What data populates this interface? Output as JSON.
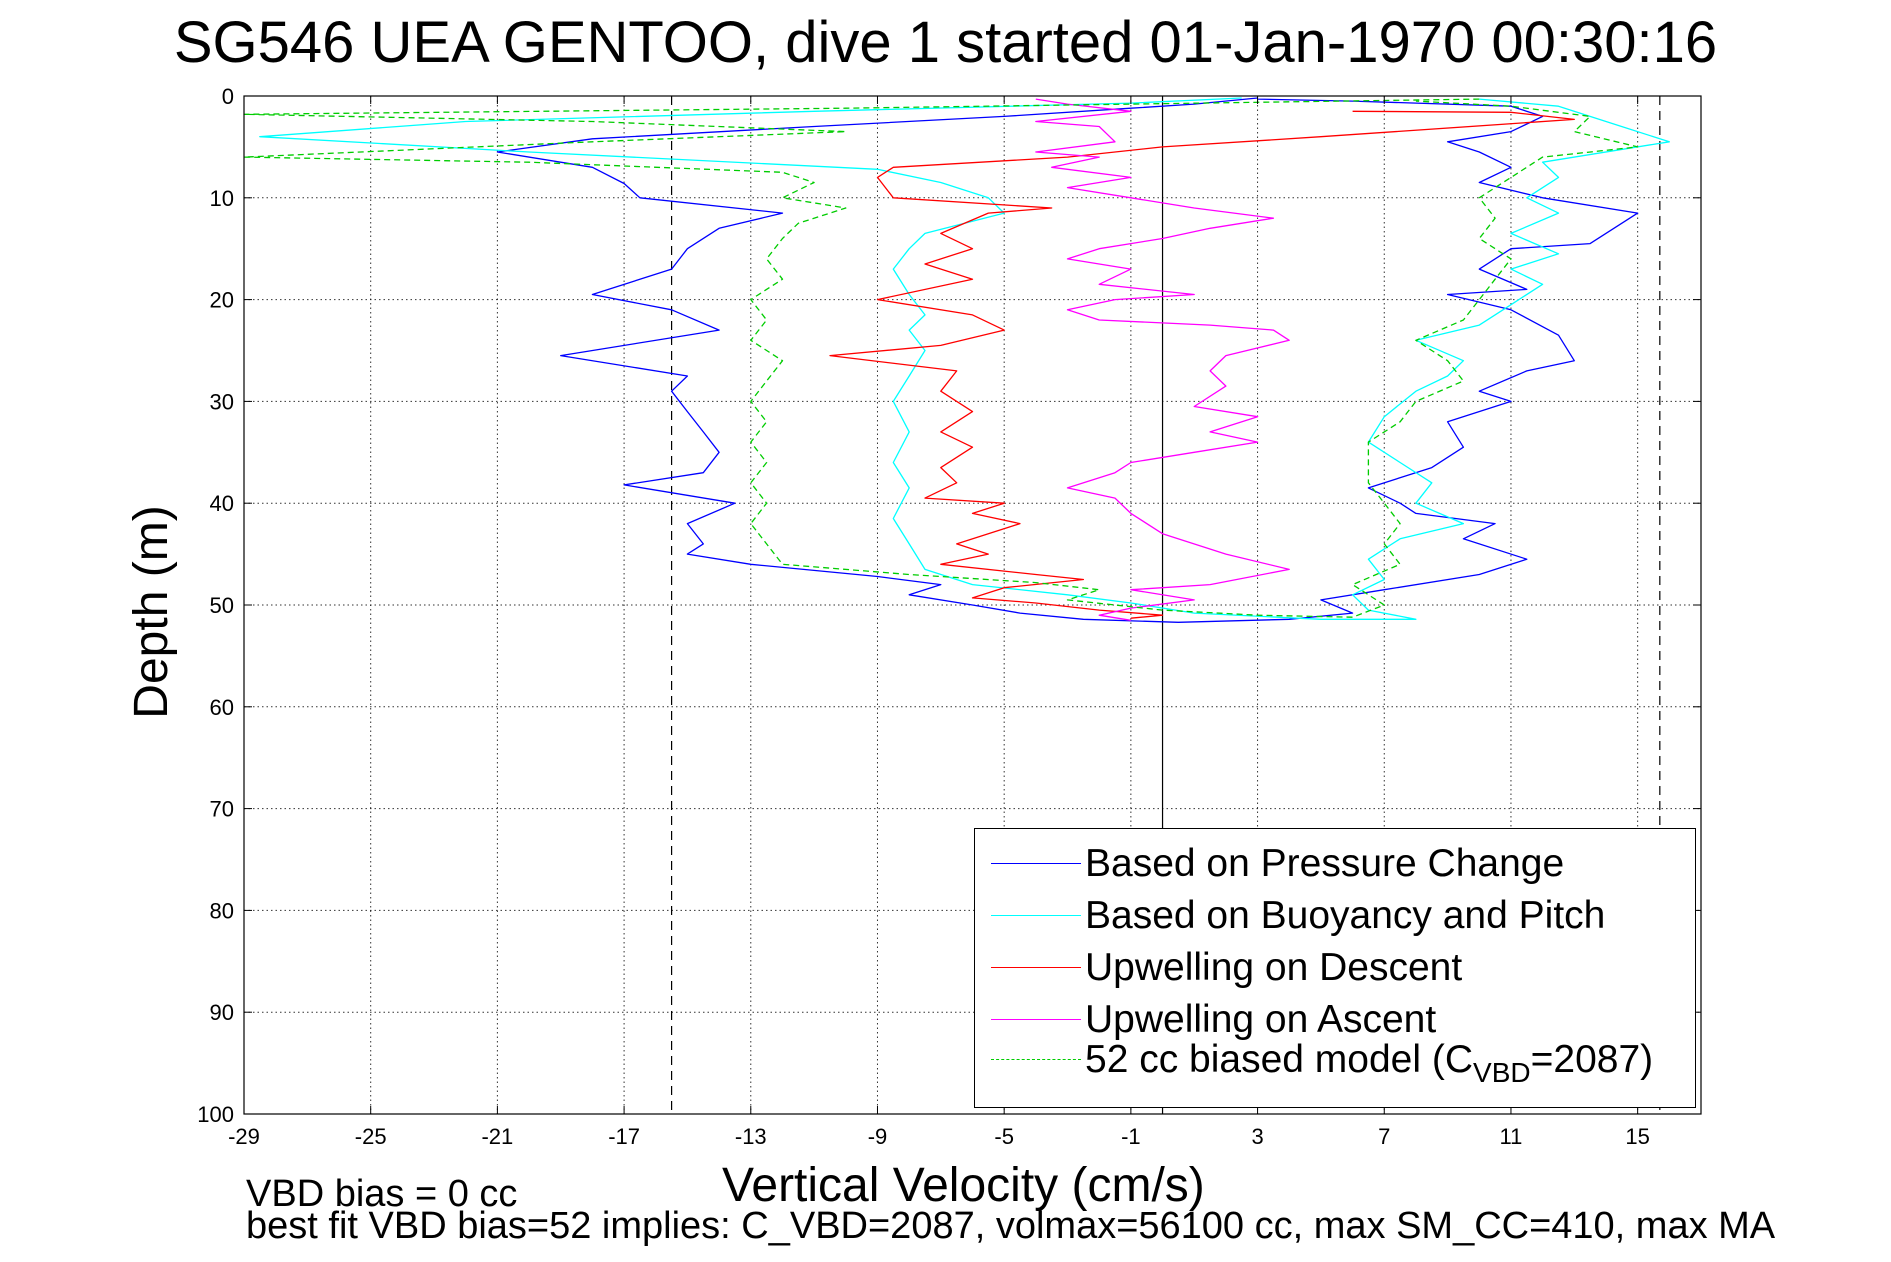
{
  "chart_data": {
    "type": "line",
    "title": "SG546 UEA GENTOO, dive 1 started 01-Jan-1970 00:30:16",
    "xlabel": "Vertical Velocity (cm/s)",
    "ylabel": "Depth (m)",
    "xlim": [
      -29,
      17
    ],
    "ylim": [
      0,
      100
    ],
    "y_reversed": true,
    "x_ticks": [
      "-29",
      "-25",
      "-21",
      "-17",
      "-13",
      "-9",
      "-5",
      "-1",
      "3",
      "7",
      "11",
      "15"
    ],
    "x_tick_values": [
      -29,
      -25,
      -21,
      -17,
      -13,
      -9,
      -5,
      -1,
      3,
      7,
      11,
      15
    ],
    "y_ticks": [
      "0",
      "10",
      "20",
      "30",
      "40",
      "50",
      "60",
      "70",
      "80",
      "90",
      "100"
    ],
    "y_tick_values": [
      0,
      10,
      20,
      30,
      40,
      50,
      60,
      70,
      80,
      90,
      100
    ],
    "grid": true,
    "legend_position": "bottom-right",
    "reference_lines": [
      {
        "x": 0.0,
        "style": "solid",
        "color": "#000000"
      },
      {
        "x": -15.5,
        "style": "dashed",
        "color": "#000000"
      },
      {
        "x": 15.7,
        "style": "dashed",
        "color": "#000000"
      }
    ],
    "series": [
      {
        "name": "Based on Pressure Change",
        "color": "#0000ff",
        "style": "solid",
        "points": [
          [
            3.0,
            0.2
          ],
          [
            1.0,
            0.8
          ],
          [
            -1.0,
            1.2
          ],
          [
            -5.0,
            2.0
          ],
          [
            -11.0,
            3.0
          ],
          [
            -18.0,
            4.2
          ],
          [
            -21.0,
            5.5
          ],
          [
            -18.0,
            7.0
          ],
          [
            -17.0,
            8.6
          ],
          [
            -16.5,
            10.0
          ],
          [
            -12.0,
            11.5
          ],
          [
            -14.0,
            13.0
          ],
          [
            -15.0,
            15.0
          ],
          [
            -15.5,
            17.0
          ],
          [
            -18.0,
            19.5
          ],
          [
            -15.5,
            21.0
          ],
          [
            -14.0,
            23.0
          ],
          [
            -19.0,
            25.5
          ],
          [
            -15.0,
            27.5
          ],
          [
            -15.5,
            29.0
          ],
          [
            -15.0,
            31.0
          ],
          [
            -14.5,
            33.0
          ],
          [
            -14.0,
            35.0
          ],
          [
            -14.5,
            37.0
          ],
          [
            -17.0,
            38.2
          ],
          [
            -13.5,
            40.0
          ],
          [
            -15.0,
            42.0
          ],
          [
            -14.5,
            44.0
          ],
          [
            -15.0,
            45.0
          ],
          [
            -13.0,
            46.0
          ],
          [
            -9.0,
            47.2
          ],
          [
            -7.0,
            48.0
          ],
          [
            -8.0,
            49.0
          ],
          [
            -6.0,
            50.0
          ],
          [
            -4.5,
            50.8
          ],
          [
            -2.5,
            51.4
          ],
          [
            0.5,
            51.7
          ],
          [
            4.0,
            51.4
          ],
          [
            6.0,
            50.8
          ],
          [
            5.0,
            49.5
          ],
          [
            7.0,
            48.5
          ],
          [
            10.0,
            47.0
          ],
          [
            11.5,
            45.5
          ],
          [
            9.5,
            43.5
          ],
          [
            10.5,
            42.0
          ],
          [
            8.0,
            41.0
          ],
          [
            7.5,
            40.0
          ],
          [
            6.5,
            38.5
          ],
          [
            8.5,
            36.5
          ],
          [
            9.5,
            34.5
          ],
          [
            9.0,
            32.0
          ],
          [
            11.0,
            30.0
          ],
          [
            10.0,
            29.0
          ],
          [
            11.5,
            27.0
          ],
          [
            13.0,
            26.0
          ],
          [
            12.5,
            23.5
          ],
          [
            11.0,
            21.0
          ],
          [
            9.0,
            19.5
          ],
          [
            11.5,
            19.0
          ],
          [
            10.0,
            17.0
          ],
          [
            11.0,
            15.0
          ],
          [
            13.5,
            14.5
          ],
          [
            15.0,
            11.5
          ],
          [
            12.0,
            10.0
          ],
          [
            10.0,
            8.5
          ],
          [
            11.0,
            7.0
          ],
          [
            10.0,
            5.5
          ],
          [
            9.0,
            4.5
          ],
          [
            11.0,
            3.5
          ],
          [
            12.0,
            2.0
          ],
          [
            11.0,
            1.0
          ],
          [
            6.0,
            0.5
          ],
          [
            3.0,
            0.3
          ]
        ]
      },
      {
        "name": "Based on Buoyancy and Pitch",
        "color": "#00ffff",
        "style": "solid",
        "points": [
          [
            2.5,
            0.2
          ],
          [
            -1.0,
            0.7
          ],
          [
            -11.0,
            1.5
          ],
          [
            -22.0,
            2.5
          ],
          [
            -28.5,
            4.0
          ],
          [
            -20.0,
            5.5
          ],
          [
            -9.0,
            7.2
          ],
          [
            -7.0,
            8.5
          ],
          [
            -5.5,
            10.0
          ],
          [
            -5.0,
            11.5
          ],
          [
            -7.5,
            13.5
          ],
          [
            -8.0,
            15.0
          ],
          [
            -8.5,
            17.0
          ],
          [
            -8.0,
            19.5
          ],
          [
            -7.5,
            21.5
          ],
          [
            -8.0,
            23.0
          ],
          [
            -7.5,
            25.0
          ],
          [
            -8.0,
            27.5
          ],
          [
            -8.5,
            30.0
          ],
          [
            -8.0,
            33.0
          ],
          [
            -8.5,
            36.0
          ],
          [
            -8.0,
            38.5
          ],
          [
            -8.5,
            41.5
          ],
          [
            -8.0,
            44.0
          ],
          [
            -7.5,
            46.5
          ],
          [
            -6.0,
            48.0
          ],
          [
            -3.0,
            49.0
          ],
          [
            -1.0,
            49.8
          ],
          [
            1.0,
            50.8
          ],
          [
            5.0,
            51.4
          ],
          [
            8.0,
            51.4
          ],
          [
            6.5,
            50.5
          ],
          [
            6.0,
            49.0
          ],
          [
            7.0,
            47.5
          ],
          [
            6.5,
            45.5
          ],
          [
            7.5,
            43.5
          ],
          [
            9.5,
            42.0
          ],
          [
            8.0,
            40.0
          ],
          [
            8.5,
            38.0
          ],
          [
            7.5,
            36.0
          ],
          [
            6.5,
            34.0
          ],
          [
            7.0,
            31.5
          ],
          [
            8.0,
            29.0
          ],
          [
            9.0,
            27.5
          ],
          [
            9.5,
            26.0
          ],
          [
            8.0,
            24.0
          ],
          [
            10.0,
            22.5
          ],
          [
            11.0,
            20.5
          ],
          [
            12.0,
            18.5
          ],
          [
            11.0,
            17.0
          ],
          [
            12.5,
            15.5
          ],
          [
            11.0,
            13.5
          ],
          [
            12.5,
            11.5
          ],
          [
            11.5,
            10.0
          ],
          [
            12.5,
            8.0
          ],
          [
            12.0,
            6.5
          ],
          [
            16.0,
            4.5
          ],
          [
            14.0,
            2.5
          ],
          [
            12.5,
            1.0
          ],
          [
            10.0,
            0.3
          ]
        ]
      },
      {
        "name": "Upwelling on Descent",
        "color": "#ff0000",
        "style": "solid",
        "points": [
          [
            6.0,
            1.5
          ],
          [
            11.0,
            1.6
          ],
          [
            13.0,
            2.3
          ],
          [
            5.0,
            4.0
          ],
          [
            0.0,
            5.0
          ],
          [
            -3.0,
            6.0
          ],
          [
            -8.5,
            7.0
          ],
          [
            -9.0,
            8.0
          ],
          [
            -8.5,
            10.0
          ],
          [
            -3.5,
            11.0
          ],
          [
            -5.5,
            11.5
          ],
          [
            -7.0,
            13.5
          ],
          [
            -6.0,
            15.0
          ],
          [
            -7.5,
            16.5
          ],
          [
            -6.0,
            18.0
          ],
          [
            -9.0,
            20.0
          ],
          [
            -6.0,
            21.5
          ],
          [
            -5.0,
            23.0
          ],
          [
            -7.0,
            24.5
          ],
          [
            -10.5,
            25.5
          ],
          [
            -6.5,
            27.0
          ],
          [
            -7.0,
            29.0
          ],
          [
            -6.0,
            31.0
          ],
          [
            -7.0,
            33.0
          ],
          [
            -6.0,
            34.5
          ],
          [
            -7.0,
            36.5
          ],
          [
            -6.5,
            38.0
          ],
          [
            -7.5,
            39.5
          ],
          [
            -5.0,
            40.0
          ],
          [
            -6.0,
            41.0
          ],
          [
            -4.5,
            42.0
          ],
          [
            -6.5,
            44.0
          ],
          [
            -5.5,
            45.0
          ],
          [
            -7.0,
            46.0
          ],
          [
            -4.0,
            47.0
          ],
          [
            -2.5,
            47.5
          ],
          [
            -5.0,
            48.3
          ],
          [
            -6.0,
            49.3
          ],
          [
            -4.0,
            49.8
          ],
          [
            -2.0,
            50.5
          ],
          [
            0.0,
            51.0
          ],
          [
            -1.0,
            51.3
          ]
        ]
      },
      {
        "name": "Upwelling on Ascent",
        "color": "#ff00ff",
        "style": "solid",
        "points": [
          [
            -1.0,
            51.5
          ],
          [
            -2.0,
            51.0
          ],
          [
            -1.0,
            50.3
          ],
          [
            1.0,
            49.5
          ],
          [
            -1.0,
            48.5
          ],
          [
            1.5,
            48.0
          ],
          [
            4.0,
            46.5
          ],
          [
            2.0,
            45.0
          ],
          [
            0.0,
            43.0
          ],
          [
            -1.0,
            41.0
          ],
          [
            -1.5,
            39.5
          ],
          [
            -3.0,
            38.5
          ],
          [
            -1.5,
            37.0
          ],
          [
            -1.0,
            36.0
          ],
          [
            1.0,
            35.0
          ],
          [
            3.0,
            34.0
          ],
          [
            1.5,
            33.0
          ],
          [
            3.0,
            31.5
          ],
          [
            1.0,
            30.5
          ],
          [
            2.0,
            28.5
          ],
          [
            1.5,
            27.0
          ],
          [
            2.0,
            25.5
          ],
          [
            4.0,
            24.0
          ],
          [
            3.5,
            23.0
          ],
          [
            1.5,
            22.5
          ],
          [
            -2.0,
            22.0
          ],
          [
            -3.0,
            21.0
          ],
          [
            -1.5,
            20.0
          ],
          [
            1.0,
            19.5
          ],
          [
            -2.0,
            18.5
          ],
          [
            -1.0,
            17.0
          ],
          [
            -3.0,
            16.0
          ],
          [
            -2.0,
            15.0
          ],
          [
            0.0,
            14.0
          ],
          [
            1.5,
            13.0
          ],
          [
            3.5,
            12.0
          ],
          [
            1.0,
            11.0
          ],
          [
            -1.0,
            10.0
          ],
          [
            -3.0,
            9.0
          ],
          [
            -1.0,
            8.0
          ],
          [
            -3.5,
            7.0
          ],
          [
            -2.0,
            6.0
          ],
          [
            -4.0,
            5.5
          ],
          [
            -1.5,
            4.5
          ],
          [
            -2.0,
            3.0
          ],
          [
            -4.0,
            2.5
          ],
          [
            -1.0,
            1.5
          ],
          [
            -3.0,
            0.8
          ],
          [
            -4.0,
            0.3
          ]
        ]
      },
      {
        "name": "52 cc biased model (C_VBD=2087)",
        "legend_label_parts": [
          "52 cc biased model (C",
          "VBD",
          "=2087)"
        ],
        "color": "#00cc00",
        "style": "dashed",
        "points": [
          [
            10.0,
            0.3
          ],
          [
            -10.0,
            1.2
          ],
          [
            -29.0,
            1.8
          ],
          [
            -18.0,
            2.5
          ],
          [
            -10.0,
            3.5
          ],
          [
            -18.0,
            4.5
          ],
          [
            -29.0,
            6.0
          ],
          [
            -20.0,
            6.5
          ],
          [
            -12.0,
            7.5
          ],
          [
            -11.0,
            8.5
          ],
          [
            -12.0,
            10.0
          ],
          [
            -10.0,
            11.0
          ],
          [
            -11.5,
            12.5
          ],
          [
            -12.0,
            14.0
          ],
          [
            -12.5,
            16.0
          ],
          [
            -12.0,
            18.0
          ],
          [
            -13.0,
            20.0
          ],
          [
            -12.5,
            22.0
          ],
          [
            -13.0,
            24.0
          ],
          [
            -12.0,
            26.0
          ],
          [
            -12.5,
            28.0
          ],
          [
            -13.0,
            30.0
          ],
          [
            -12.5,
            32.0
          ],
          [
            -13.0,
            34.0
          ],
          [
            -12.5,
            36.0
          ],
          [
            -13.0,
            38.0
          ],
          [
            -12.5,
            40.0
          ],
          [
            -13.0,
            42.0
          ],
          [
            -12.5,
            44.0
          ],
          [
            -12.0,
            46.0
          ],
          [
            -8.0,
            47.0
          ],
          [
            -4.0,
            47.8
          ],
          [
            -2.0,
            48.5
          ],
          [
            -3.0,
            49.5
          ],
          [
            0.0,
            50.5
          ],
          [
            3.0,
            51.0
          ],
          [
            6.0,
            51.2
          ],
          [
            7.0,
            50.0
          ],
          [
            6.0,
            48.0
          ],
          [
            7.5,
            46.0
          ],
          [
            7.0,
            44.0
          ],
          [
            7.5,
            42.0
          ],
          [
            7.0,
            40.0
          ],
          [
            6.5,
            38.0
          ],
          [
            6.5,
            36.0
          ],
          [
            6.5,
            34.0
          ],
          [
            7.5,
            32.0
          ],
          [
            8.0,
            30.0
          ],
          [
            9.5,
            28.0
          ],
          [
            9.0,
            26.0
          ],
          [
            8.0,
            24.0
          ],
          [
            9.5,
            22.0
          ],
          [
            10.0,
            20.0
          ],
          [
            10.5,
            18.0
          ],
          [
            11.0,
            16.0
          ],
          [
            10.0,
            14.0
          ],
          [
            10.5,
            12.0
          ],
          [
            10.0,
            10.0
          ],
          [
            11.0,
            8.0
          ],
          [
            12.0,
            6.0
          ],
          [
            15.0,
            5.0
          ],
          [
            13.0,
            3.5
          ],
          [
            13.5,
            2.0
          ],
          [
            11.0,
            1.0
          ],
          [
            8.0,
            0.5
          ]
        ]
      }
    ]
  },
  "footer": {
    "line1": "VBD bias = 0 cc",
    "line2": "best fit VBD bias=52 implies: C_VBD=2087, volmax=56100 cc, max SM_CC=410, max MA"
  }
}
